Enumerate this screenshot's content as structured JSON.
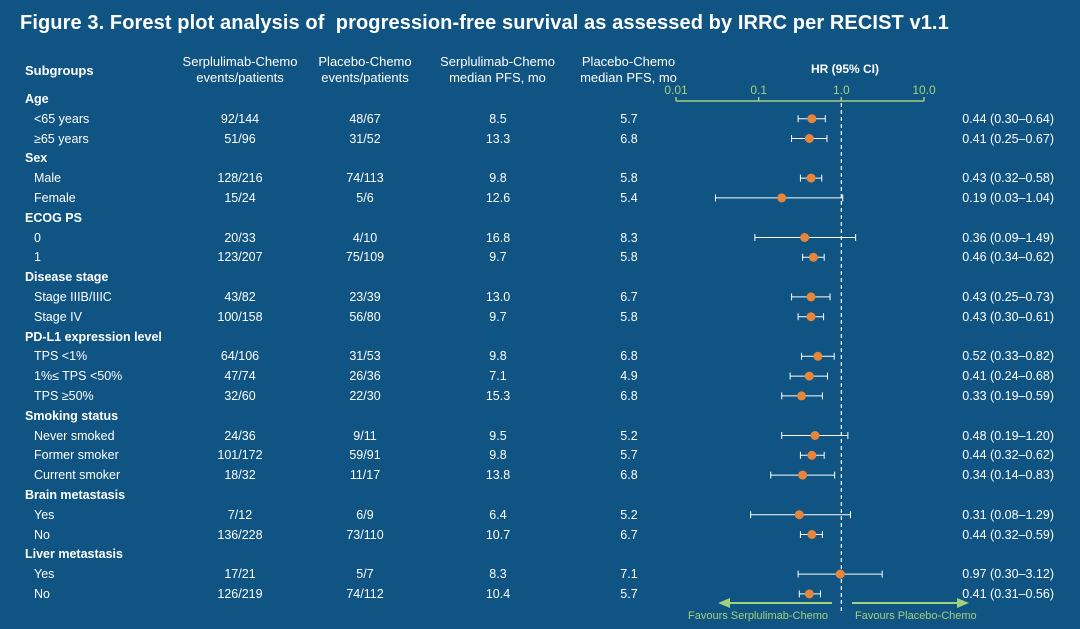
{
  "title": "Figure 3. Forest plot analysis of  progression-free survival as assessed by IRRC per RECIST v1.1",
  "headers": {
    "subgroups": "Subgroups",
    "col1": [
      "Serplulimab-Chemo",
      "events/patients"
    ],
    "col2": [
      "Placebo-Chemo",
      "events/patients"
    ],
    "col3": [
      "Serplulimab-Chemo",
      "median PFS, mo"
    ],
    "col4": [
      "Placebo-Chemo",
      "median PFS, mo"
    ],
    "hr": "HR (95% CI)"
  },
  "favours": {
    "left": "Favours  Serplulimab-Chemo",
    "right": "Favours  Placebo-Chemo"
  },
  "colors": {
    "background": "#0f5483",
    "axis": "#a3d07b",
    "marker": "#e8853a",
    "ci": "#ffffff"
  },
  "chart_data": {
    "type": "forest",
    "xscale": "log",
    "xlim": [
      0.01,
      10
    ],
    "xticks": [
      "0.01",
      "0.1",
      "1.0",
      "10.0"
    ],
    "reference_line": 1.0,
    "rows": [
      {
        "kind": "group",
        "label": "Age"
      },
      {
        "kind": "item",
        "label": "<65 years",
        "c1": "92/144",
        "c2": "48/67",
        "c3": "8.5",
        "c4": "5.7",
        "hr": 0.44,
        "lo": 0.3,
        "hi": 0.64,
        "hrtext": "0.44 (0.30–0.64)"
      },
      {
        "kind": "item",
        "label": "≥65 years",
        "c1": "51/96",
        "c2": "31/52",
        "c3": "13.3",
        "c4": "6.8",
        "hr": 0.41,
        "lo": 0.25,
        "hi": 0.67,
        "hrtext": "0.41 (0.25–0.67)"
      },
      {
        "kind": "group",
        "label": "Sex"
      },
      {
        "kind": "item",
        "label": "Male",
        "c1": "128/216",
        "c2": "74/113",
        "c3": "9.8",
        "c4": "5.8",
        "hr": 0.43,
        "lo": 0.32,
        "hi": 0.58,
        "hrtext": "0.43 (0.32–0.58)"
      },
      {
        "kind": "item",
        "label": "Female",
        "c1": "15/24",
        "c2": "5/6",
        "c3": "12.6",
        "c4": "5.4",
        "hr": 0.19,
        "lo": 0.03,
        "hi": 1.04,
        "hrtext": "0.19 (0.03–1.04)"
      },
      {
        "kind": "group",
        "label": "ECOG PS"
      },
      {
        "kind": "item",
        "label": "0",
        "c1": "20/33",
        "c2": "4/10",
        "c3": "16.8",
        "c4": "8.3",
        "hr": 0.36,
        "lo": 0.09,
        "hi": 1.49,
        "hrtext": "0.36 (0.09–1.49)"
      },
      {
        "kind": "item",
        "label": "1",
        "c1": "123/207",
        "c2": "75/109",
        "c3": "9.7",
        "c4": "5.8",
        "hr": 0.46,
        "lo": 0.34,
        "hi": 0.62,
        "hrtext": "0.46 (0.34–0.62)"
      },
      {
        "kind": "group",
        "label": "Disease stage"
      },
      {
        "kind": "item",
        "label": "Stage IIIB/IIIC",
        "c1": "43/82",
        "c2": "23/39",
        "c3": "13.0",
        "c4": "6.7",
        "hr": 0.43,
        "lo": 0.25,
        "hi": 0.73,
        "hrtext": "0.43 (0.25–0.73)"
      },
      {
        "kind": "item",
        "label": "Stage IV",
        "c1": "100/158",
        "c2": "56/80",
        "c3": "9.7",
        "c4": "5.8",
        "hr": 0.43,
        "lo": 0.3,
        "hi": 0.61,
        "hrtext": "0.43 (0.30–0.61)"
      },
      {
        "kind": "group",
        "label": "PD-L1 expression level"
      },
      {
        "kind": "item",
        "label": "TPS <1%",
        "c1": "64/106",
        "c2": "31/53",
        "c3": "9.8",
        "c4": "6.8",
        "hr": 0.52,
        "lo": 0.33,
        "hi": 0.82,
        "hrtext": "0.52 (0.33–0.82)"
      },
      {
        "kind": "item",
        "label": "1%≤ TPS <50%",
        "c1": "47/74",
        "c2": "26/36",
        "c3": "7.1",
        "c4": "4.9",
        "hr": 0.41,
        "lo": 0.24,
        "hi": 0.68,
        "hrtext": "0.41 (0.24–0.68)"
      },
      {
        "kind": "item",
        "label": "TPS ≥50%",
        "c1": "32/60",
        "c2": "22/30",
        "c3": "15.3",
        "c4": "6.8",
        "hr": 0.33,
        "lo": 0.19,
        "hi": 0.59,
        "hrtext": "0.33 (0.19–0.59)"
      },
      {
        "kind": "group",
        "label": "Smoking status"
      },
      {
        "kind": "item",
        "label": "Never smoked",
        "c1": "24/36",
        "c2": "9/11",
        "c3": "9.5",
        "c4": "5.2",
        "hr": 0.48,
        "lo": 0.19,
        "hi": 1.2,
        "hrtext": "0.48 (0.19–1.20)"
      },
      {
        "kind": "item",
        "label": "Former smoker",
        "c1": "101/172",
        "c2": "59/91",
        "c3": "9.8",
        "c4": "5.7",
        "hr": 0.44,
        "lo": 0.32,
        "hi": 0.62,
        "hrtext": "0.44 (0.32–0.62)"
      },
      {
        "kind": "item",
        "label": "Current smoker",
        "c1": "18/32",
        "c2": "11/17",
        "c3": "13.8",
        "c4": "6.8",
        "hr": 0.34,
        "lo": 0.14,
        "hi": 0.83,
        "hrtext": "0.34 (0.14–0.83)"
      },
      {
        "kind": "group",
        "label": "Brain metastasis"
      },
      {
        "kind": "item",
        "label": "Yes",
        "c1": "7/12",
        "c2": "6/9",
        "c3": "6.4",
        "c4": "5.2",
        "hr": 0.31,
        "lo": 0.08,
        "hi": 1.29,
        "hrtext": "0.31 (0.08–1.29)"
      },
      {
        "kind": "item",
        "label": "No",
        "c1": "136/228",
        "c2": "73/110",
        "c3": "10.7",
        "c4": "6.7",
        "hr": 0.44,
        "lo": 0.32,
        "hi": 0.59,
        "hrtext": "0.44 (0.32–0.59)"
      },
      {
        "kind": "group",
        "label": "Liver metastasis"
      },
      {
        "kind": "item",
        "label": "Yes",
        "c1": "17/21",
        "c2": "5/7",
        "c3": "8.3",
        "c4": "7.1",
        "hr": 0.97,
        "lo": 0.3,
        "hi": 3.12,
        "hrtext": "0.97 (0.30–3.12)"
      },
      {
        "kind": "item",
        "label": "No",
        "c1": "126/219",
        "c2": "74/112",
        "c3": "10.4",
        "c4": "5.7",
        "hr": 0.41,
        "lo": 0.31,
        "hi": 0.56,
        "hrtext": "0.41 (0.31–0.56)"
      }
    ]
  }
}
